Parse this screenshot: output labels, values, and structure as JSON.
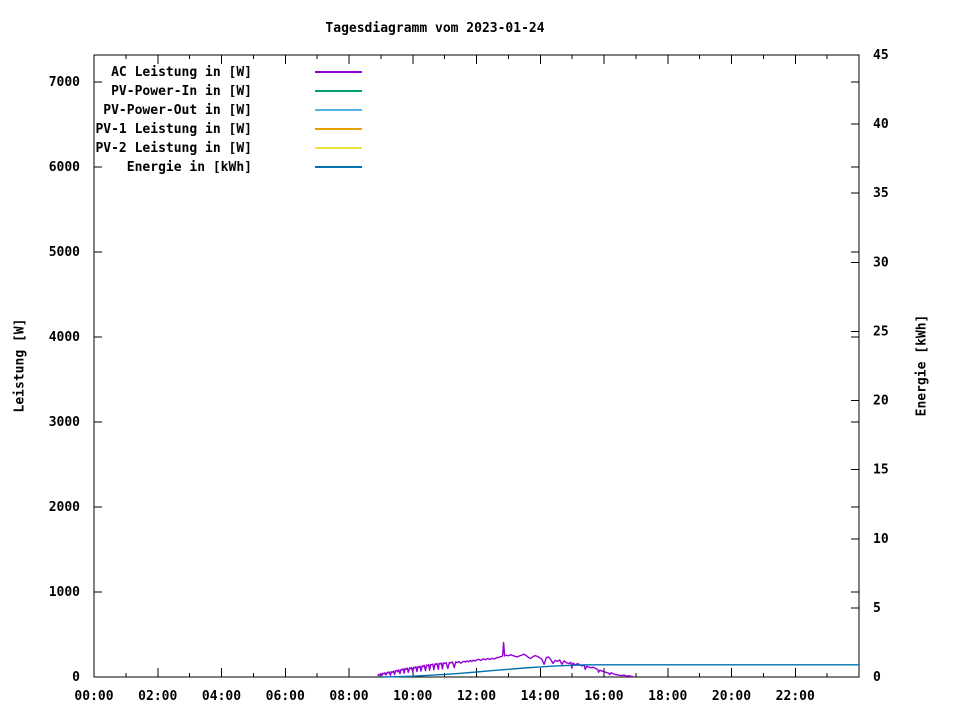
{
  "chart_data": {
    "type": "line",
    "title": "Tagesdiagramm vom 2023-01-24",
    "grid": false,
    "legend_position": "top-left",
    "x_axis": {
      "unit": "time",
      "range_hours": [
        0,
        24
      ],
      "major_tick_hours": [
        0,
        2,
        4,
        6,
        8,
        10,
        12,
        14,
        16,
        18,
        20,
        22
      ],
      "major_tick_labels": [
        "00:00",
        "02:00",
        "04:00",
        "06:00",
        "08:00",
        "10:00",
        "12:00",
        "14:00",
        "16:00",
        "18:00",
        "20:00",
        "22:00"
      ],
      "minor_tick_every_hours": 1
    },
    "y_left": {
      "label": "Leistung [W]",
      "min": 0,
      "max": 7320,
      "tick_values": [
        0,
        1000,
        2000,
        3000,
        4000,
        5000,
        6000,
        7000
      ],
      "tick_labels": [
        "0",
        "1000",
        "2000",
        "3000",
        "4000",
        "5000",
        "6000",
        "7000"
      ]
    },
    "y_right": {
      "label": "Energie [kWh]",
      "min": 0,
      "max": 45,
      "tick_values": [
        0,
        5,
        10,
        15,
        20,
        25,
        30,
        35,
        40,
        45
      ],
      "tick_labels": [
        "0",
        "5",
        "10",
        "15",
        "20",
        "25",
        "30",
        "35",
        "40",
        "45"
      ]
    },
    "series": [
      {
        "name": "AC Leistung in [W]",
        "color": "#9400D3",
        "axis": "left",
        "points": [
          [
            8.9,
            12
          ],
          [
            8.93,
            30
          ],
          [
            8.96,
            22
          ],
          [
            9.0,
            40
          ],
          [
            9.03,
            18
          ],
          [
            9.06,
            45
          ],
          [
            9.1,
            35
          ],
          [
            9.13,
            50
          ],
          [
            9.16,
            25
          ],
          [
            9.2,
            55
          ],
          [
            9.23,
            48
          ],
          [
            9.26,
            60
          ],
          [
            9.3,
            20
          ],
          [
            9.33,
            62
          ],
          [
            9.36,
            55
          ],
          [
            9.4,
            70
          ],
          [
            9.43,
            30
          ],
          [
            9.46,
            72
          ],
          [
            9.5,
            78
          ],
          [
            9.53,
            60
          ],
          [
            9.56,
            85
          ],
          [
            9.6,
            40
          ],
          [
            9.63,
            90
          ],
          [
            9.66,
            82
          ],
          [
            9.7,
            95
          ],
          [
            9.73,
            45
          ],
          [
            9.76,
            100
          ],
          [
            9.8,
            92
          ],
          [
            9.83,
            105
          ],
          [
            9.86,
            55
          ],
          [
            9.9,
            108
          ],
          [
            9.93,
            100
          ],
          [
            9.96,
            112
          ],
          [
            10.0,
            60
          ],
          [
            10.03,
            115
          ],
          [
            10.06,
            108
          ],
          [
            10.1,
            120
          ],
          [
            10.13,
            65
          ],
          [
            10.16,
            122
          ],
          [
            10.2,
            115
          ],
          [
            10.23,
            128
          ],
          [
            10.26,
            70
          ],
          [
            10.3,
            132
          ],
          [
            10.33,
            125
          ],
          [
            10.36,
            138
          ],
          [
            10.4,
            75
          ],
          [
            10.43,
            140
          ],
          [
            10.46,
            133
          ],
          [
            10.5,
            145
          ],
          [
            10.53,
            80
          ],
          [
            10.56,
            148
          ],
          [
            10.6,
            142
          ],
          [
            10.63,
            152
          ],
          [
            10.66,
            85
          ],
          [
            10.7,
            155
          ],
          [
            10.73,
            148
          ],
          [
            10.76,
            158
          ],
          [
            10.8,
            90
          ],
          [
            10.83,
            160
          ],
          [
            10.86,
            154
          ],
          [
            10.9,
            164
          ],
          [
            10.93,
            95
          ],
          [
            10.96,
            166
          ],
          [
            11.0,
            160
          ],
          [
            11.05,
            170
          ],
          [
            11.1,
            100
          ],
          [
            11.15,
            172
          ],
          [
            11.2,
            165
          ],
          [
            11.25,
            176
          ],
          [
            11.3,
            110
          ],
          [
            11.35,
            178
          ],
          [
            11.4,
            170
          ],
          [
            11.45,
            182
          ],
          [
            11.5,
            162
          ],
          [
            11.55,
            174
          ],
          [
            11.6,
            186
          ],
          [
            11.65,
            176
          ],
          [
            11.7,
            190
          ],
          [
            11.75,
            180
          ],
          [
            11.8,
            194
          ],
          [
            11.85,
            184
          ],
          [
            11.9,
            198
          ],
          [
            11.95,
            188
          ],
          [
            12.0,
            200
          ],
          [
            12.07,
            208
          ],
          [
            12.14,
            194
          ],
          [
            12.21,
            214
          ],
          [
            12.28,
            202
          ],
          [
            12.35,
            218
          ],
          [
            12.42,
            206
          ],
          [
            12.49,
            220
          ],
          [
            12.56,
            212
          ],
          [
            12.63,
            226
          ],
          [
            12.7,
            232
          ],
          [
            12.77,
            240
          ],
          [
            12.82,
            246
          ],
          [
            12.85,
            405
          ],
          [
            12.88,
            248
          ],
          [
            12.93,
            256
          ],
          [
            13.0,
            250
          ],
          [
            13.07,
            262
          ],
          [
            13.14,
            252
          ],
          [
            13.21,
            244
          ],
          [
            13.28,
            236
          ],
          [
            13.35,
            248
          ],
          [
            13.42,
            258
          ],
          [
            13.49,
            268
          ],
          [
            13.56,
            252
          ],
          [
            13.63,
            230
          ],
          [
            13.7,
            218
          ],
          [
            13.77,
            238
          ],
          [
            13.84,
            252
          ],
          [
            13.91,
            242
          ],
          [
            13.98,
            228
          ],
          [
            14.05,
            210
          ],
          [
            14.12,
            150
          ],
          [
            14.19,
            228
          ],
          [
            14.26,
            236
          ],
          [
            14.33,
            205
          ],
          [
            14.4,
            160
          ],
          [
            14.47,
            195
          ],
          [
            14.54,
            185
          ],
          [
            14.61,
            200
          ],
          [
            14.68,
            150
          ],
          [
            14.75,
            190
          ],
          [
            14.82,
            170
          ],
          [
            14.89,
            158
          ],
          [
            14.96,
            172
          ],
          [
            14.99,
            105
          ],
          [
            15.03,
            165
          ],
          [
            15.1,
            140
          ],
          [
            15.17,
            158
          ],
          [
            15.24,
            145
          ],
          [
            15.31,
            130
          ],
          [
            15.38,
            142
          ],
          [
            15.41,
            88
          ],
          [
            15.45,
            125
          ],
          [
            15.52,
            118
          ],
          [
            15.59,
            108
          ],
          [
            15.66,
            115
          ],
          [
            15.73,
            100
          ],
          [
            15.8,
            90
          ],
          [
            15.83,
            55
          ],
          [
            15.87,
            80
          ],
          [
            15.94,
            70
          ],
          [
            16.01,
            62
          ],
          [
            16.08,
            52
          ],
          [
            16.15,
            45
          ],
          [
            16.18,
            28
          ],
          [
            16.22,
            50
          ],
          [
            16.29,
            38
          ],
          [
            16.36,
            30
          ],
          [
            16.43,
            25
          ],
          [
            16.5,
            20
          ],
          [
            16.57,
            18
          ],
          [
            16.64,
            22
          ],
          [
            16.71,
            10
          ],
          [
            16.78,
            14
          ],
          [
            16.85,
            8
          ],
          [
            16.92,
            5
          ]
        ]
      },
      {
        "name": "PV-Power-In in [W]",
        "color": "#009E73",
        "axis": "left",
        "points": []
      },
      {
        "name": "PV-Power-Out in [W]",
        "color": "#56B4E9",
        "axis": "left",
        "points": []
      },
      {
        "name": "PV-1 Leistung in [W]",
        "color": "#E69F00",
        "axis": "left",
        "points": []
      },
      {
        "name": "PV-2 Leistung in [W]",
        "color": "#F0E442",
        "axis": "left",
        "points": []
      },
      {
        "name": "Energie in [kWh]",
        "color": "#0072B2",
        "axis": "right",
        "points": [
          [
            9.0,
            0
          ],
          [
            9.5,
            0.02
          ],
          [
            10.0,
            0.06
          ],
          [
            10.5,
            0.12
          ],
          [
            11.0,
            0.19
          ],
          [
            11.5,
            0.27
          ],
          [
            12.0,
            0.36
          ],
          [
            12.5,
            0.46
          ],
          [
            13.0,
            0.56
          ],
          [
            13.5,
            0.65
          ],
          [
            14.0,
            0.73
          ],
          [
            14.5,
            0.8
          ],
          [
            15.0,
            0.85
          ],
          [
            15.3,
            0.87
          ],
          [
            15.6,
            0.88
          ],
          [
            16.0,
            0.88
          ],
          [
            24.0,
            0.88
          ]
        ]
      }
    ]
  }
}
